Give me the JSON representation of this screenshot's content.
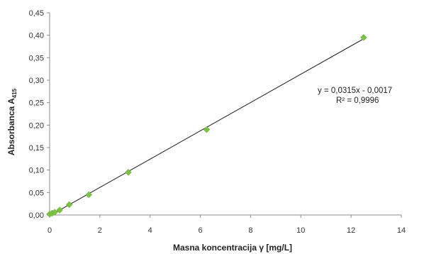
{
  "chart_data": {
    "type": "scatter",
    "title": "",
    "xlabel": "Masna koncentracija  γ [mg/L]",
    "ylabel_main": "Absorbanca  A",
    "ylabel_sub": "415",
    "xlim": [
      0,
      14
    ],
    "ylim": [
      0,
      0.45
    ],
    "x_ticks": [
      0,
      2,
      4,
      6,
      8,
      10,
      12,
      14
    ],
    "y_ticks": [
      0,
      0.05,
      0.1,
      0.15,
      0.2,
      0.25,
      0.3,
      0.35,
      0.4,
      0.45
    ],
    "x_tick_labels": [
      "0",
      "2",
      "4",
      "6",
      "8",
      "10",
      "12",
      "14"
    ],
    "y_tick_labels": [
      "0,00",
      "0,05",
      "0,10",
      "0,15",
      "0,20",
      "0,25",
      "0,30",
      "0,35",
      "0,40",
      "0,45"
    ],
    "series": [
      {
        "marker": "diamond",
        "color": "#7cc243",
        "x": [
          0,
          0.1,
          0.2,
          0.4,
          0.78,
          1.56,
          3.13,
          6.25,
          12.5
        ],
        "y": [
          0.002,
          0.004,
          0.006,
          0.011,
          0.023,
          0.045,
          0.095,
          0.19,
          0.395
        ]
      }
    ],
    "trendline": {
      "type": "linear",
      "slope": 0.0315,
      "intercept": -0.0017,
      "x_range": [
        0,
        12.5
      ],
      "color": "#1a1a1a"
    },
    "annotation": {
      "equation": "y = 0,0315x  - 0,0017",
      "r_squared": "R² = 0,9996"
    },
    "grid": false,
    "legend": "none"
  }
}
